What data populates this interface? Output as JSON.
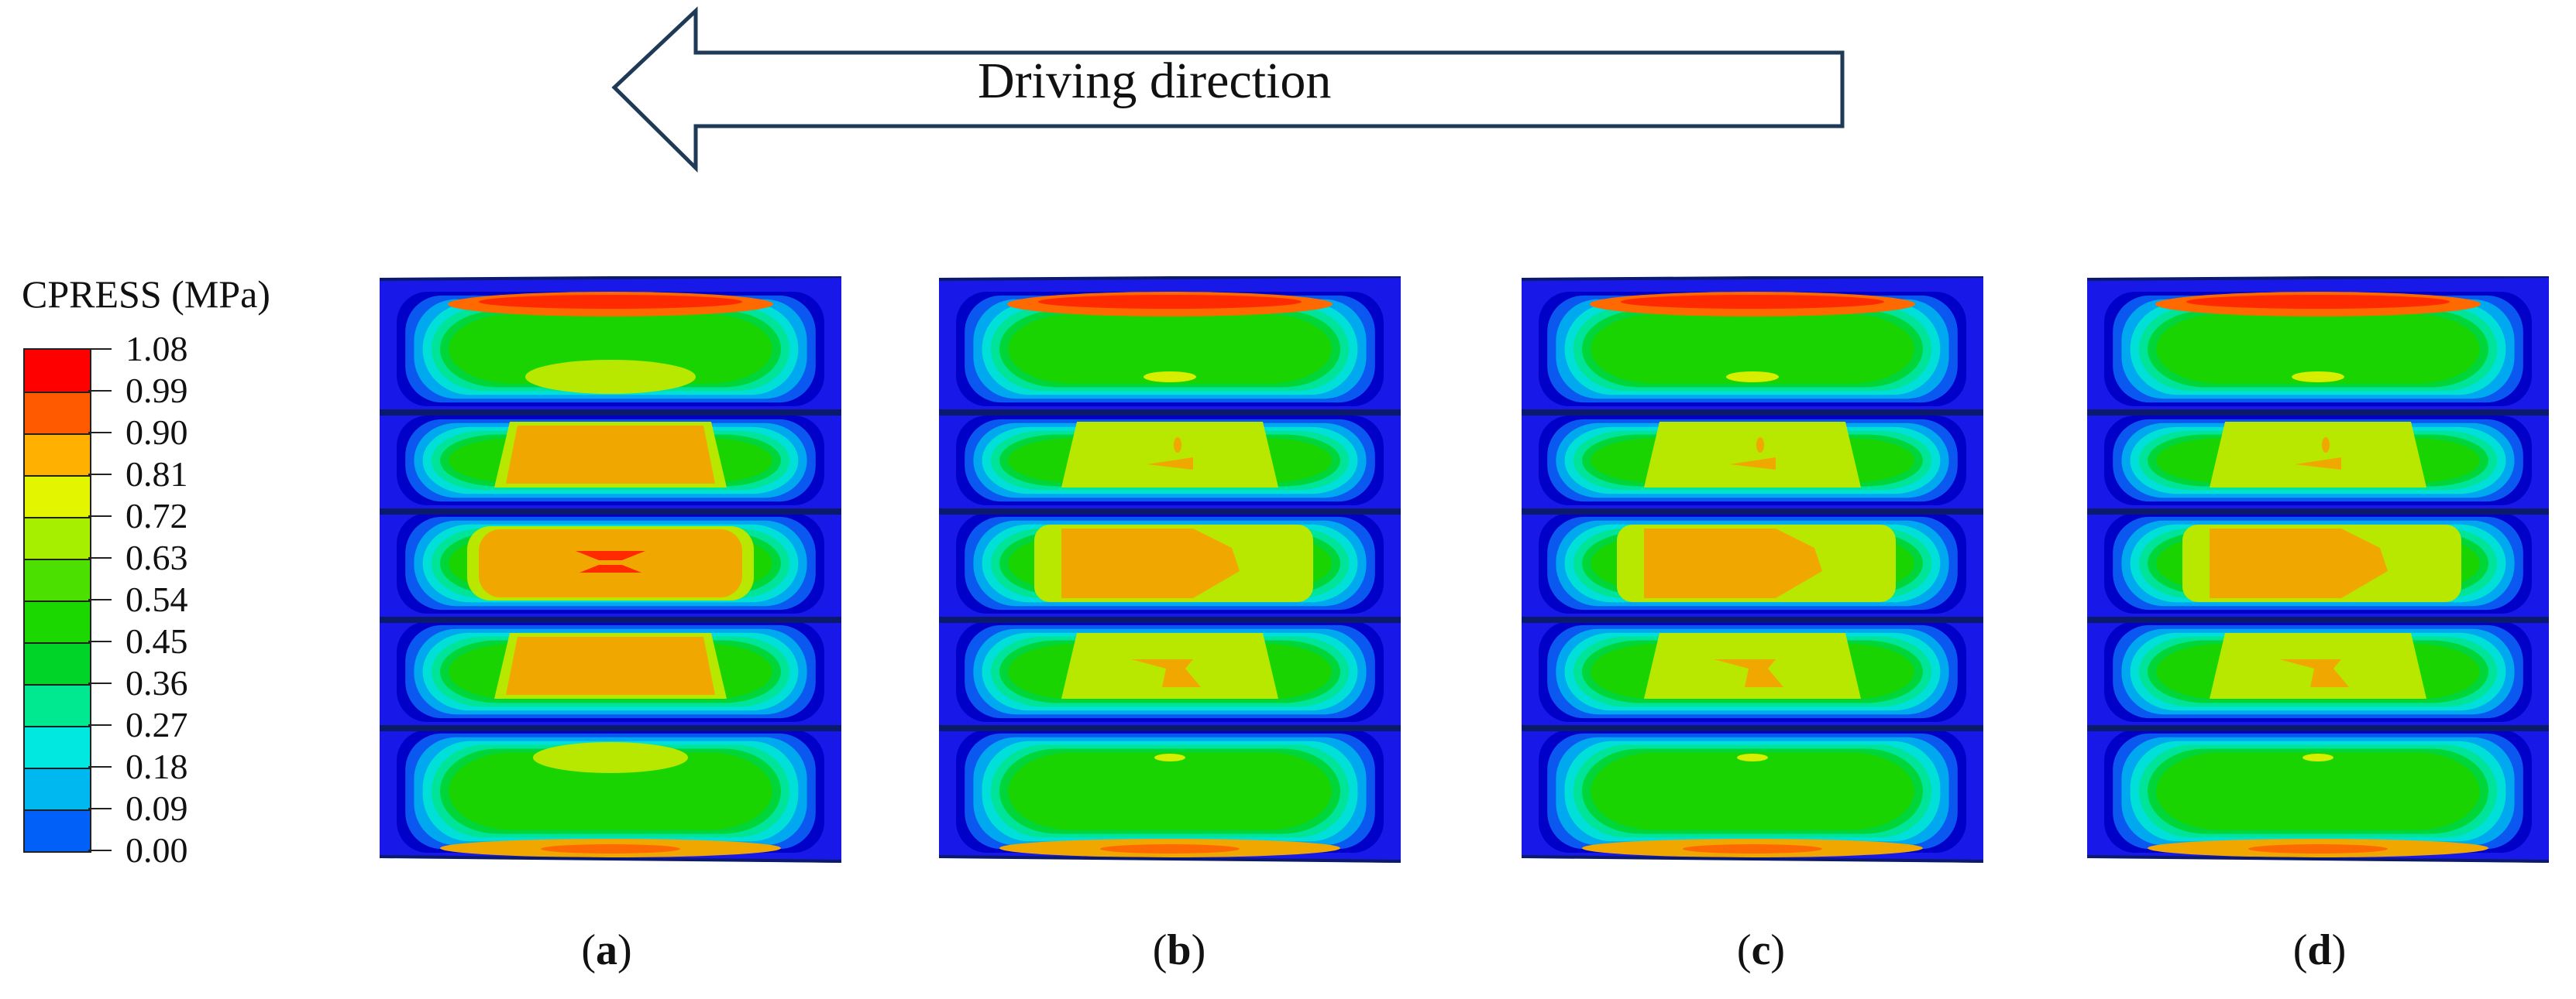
{
  "arrow": {
    "label": "Driving direction"
  },
  "legend": {
    "title": "CPRESS (MPa)",
    "ticks": [
      "1.08",
      "0.99",
      "0.90",
      "0.81",
      "0.72",
      "0.63",
      "0.54",
      "0.45",
      "0.36",
      "0.27",
      "0.18",
      "0.09",
      "0.00"
    ],
    "colors": [
      "#ff0000",
      "#ff5a00",
      "#ffb000",
      "#e4f500",
      "#a6ef00",
      "#4ce000",
      "#1ad800",
      "#00d428",
      "#00e890",
      "#00e8e0",
      "#00b8f0",
      "#0060f8",
      "#0000ff"
    ]
  },
  "panels": [
    {
      "id": "a",
      "label": "a"
    },
    {
      "id": "b",
      "label": "b"
    },
    {
      "id": "c",
      "label": "c"
    },
    {
      "id": "d",
      "label": "d"
    }
  ]
}
